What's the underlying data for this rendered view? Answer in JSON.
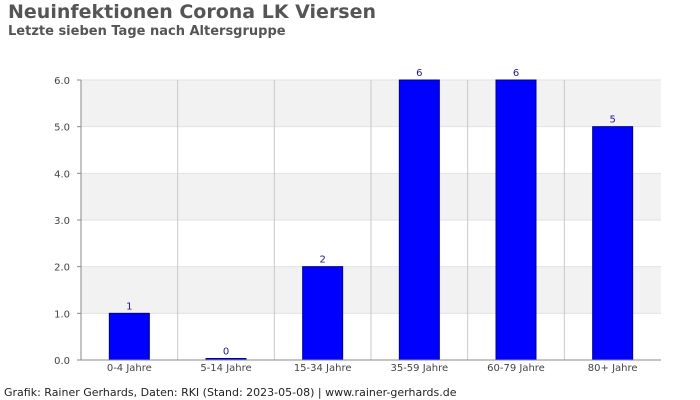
{
  "header": {
    "title": "Neuinfektionen Corona LK Viersen",
    "subtitle": "Letzte sieben Tage nach Altersgruppe"
  },
  "footer": {
    "credit": "Grafik: Rainer Gerhards, Daten: RKI (Stand: 2023-05-08) | www.rainer-gerhards.de"
  },
  "chart_data": {
    "type": "bar",
    "title": "Neuinfektionen Corona LK Viersen",
    "subtitle": "Letzte sieben Tage nach Altersgruppe",
    "xlabel": "",
    "ylabel": "",
    "categories": [
      "0-4 Jahre",
      "5-14 Jahre",
      "15-34 Jahre",
      "35-59 Jahre",
      "60-79 Jahre",
      "80+ Jahre"
    ],
    "values": [
      1,
      0,
      2,
      6,
      6,
      5
    ],
    "data_labels": [
      "1",
      "0",
      "2",
      "6",
      "6",
      "5"
    ],
    "ylim": [
      0,
      6
    ],
    "yticks": [
      0,
      1,
      2,
      3,
      4,
      5,
      6
    ],
    "ytick_labels": [
      "0.0",
      "1.0",
      "2.0",
      "3.0",
      "4.0",
      "5.0",
      "6.0"
    ],
    "grid": true,
    "legend": "none",
    "colors": {
      "bar": "#0000ff",
      "bar_edge": "#00008b",
      "band": "#f2f2f2",
      "grid": "#c8c8c8",
      "text": "#555555"
    }
  }
}
